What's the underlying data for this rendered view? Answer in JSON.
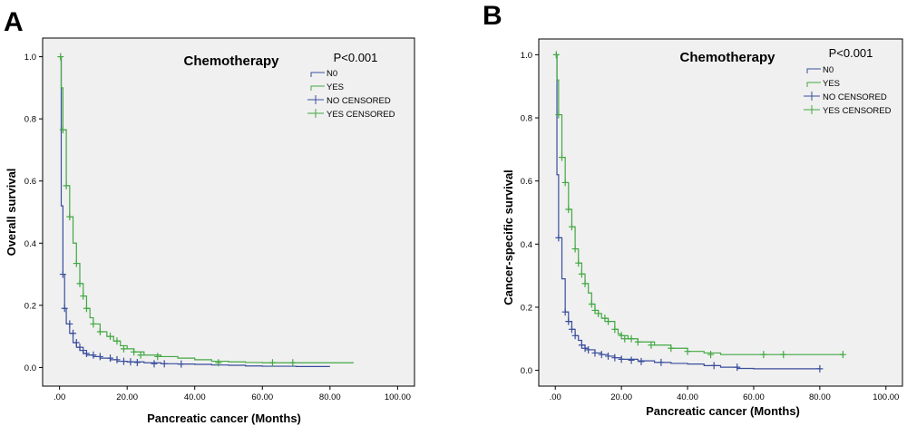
{
  "colors": {
    "no": "#3a4e9c",
    "yes": "#43a843",
    "plot_bg": "#f0f0f0",
    "axis": "#000000"
  },
  "chart_data": [
    {
      "type": "line",
      "panel": "A",
      "title": "Chemotherapy",
      "pvalue": "P<0.001",
      "xlabel": "Pancreatic cancer  (Months)",
      "ylabel": "Overall survival",
      "xlim": [
        -5,
        105
      ],
      "ylim": [
        -0.06,
        1.06
      ],
      "xticks": [
        0,
        20,
        40,
        60,
        80,
        100
      ],
      "xtick_labels": [
        ".00",
        "20.00",
        "40.00",
        "60.00",
        "80.00",
        "100.00"
      ],
      "yticks": [
        0,
        0.2,
        0.4,
        0.6,
        0.8,
        1.0
      ],
      "ytick_labels": [
        "0.0",
        "0.2",
        "0.4",
        "0.6",
        "0.8",
        "1.0"
      ],
      "legend": [
        "N0",
        "YES",
        "NO CENSORED",
        "YES CENSORED"
      ],
      "series": [
        {
          "name": "NO",
          "color_key": "no",
          "x": [
            0,
            0.5,
            1,
            1.5,
            2,
            3,
            4,
            5,
            6,
            7,
            8,
            10,
            12,
            15,
            17,
            20,
            25,
            30,
            35,
            40,
            45,
            50,
            55,
            60,
            70,
            80
          ],
          "y": [
            1.0,
            0.52,
            0.3,
            0.19,
            0.14,
            0.11,
            0.08,
            0.065,
            0.055,
            0.045,
            0.04,
            0.035,
            0.03,
            0.025,
            0.02,
            0.018,
            0.015,
            0.012,
            0.011,
            0.01,
            0.008,
            0.007,
            0.005,
            0.004,
            0.003,
            0.003
          ],
          "censored_x": [
            1,
            1.5,
            3,
            4,
            5,
            6,
            7,
            8,
            10,
            12,
            15,
            17,
            19,
            21,
            23,
            28,
            31,
            36
          ],
          "censored_y": [
            0.3,
            0.19,
            0.14,
            0.11,
            0.08,
            0.065,
            0.055,
            0.045,
            0.04,
            0.035,
            0.03,
            0.025,
            0.02,
            0.018,
            0.016,
            0.012,
            0.012,
            0.011
          ]
        },
        {
          "name": "YES",
          "color_key": "yes",
          "x": [
            0,
            0.5,
            1,
            2,
            3,
            4,
            5,
            6,
            7,
            8,
            9,
            10,
            12,
            14,
            16,
            18,
            20,
            22,
            25,
            30,
            35,
            40,
            45,
            50,
            55,
            60,
            70,
            80,
            87
          ],
          "y": [
            1.0,
            0.9,
            0.765,
            0.585,
            0.485,
            0.4,
            0.335,
            0.27,
            0.23,
            0.19,
            0.16,
            0.14,
            0.115,
            0.1,
            0.085,
            0.07,
            0.06,
            0.05,
            0.04,
            0.035,
            0.03,
            0.025,
            0.02,
            0.018,
            0.016,
            0.015,
            0.015,
            0.015,
            0.015
          ],
          "censored_x": [
            0.3,
            1,
            2,
            3,
            5,
            6,
            7,
            8,
            10,
            12,
            15,
            17,
            19,
            22,
            24,
            29,
            47,
            63,
            69
          ],
          "censored_y": [
            1.0,
            0.765,
            0.585,
            0.485,
            0.335,
            0.27,
            0.23,
            0.19,
            0.14,
            0.115,
            0.1,
            0.085,
            0.06,
            0.05,
            0.04,
            0.035,
            0.015,
            0.015,
            0.015
          ]
        }
      ]
    },
    {
      "type": "line",
      "panel": "B",
      "title": "Chemotherapy",
      "pvalue": "P<0.001",
      "xlabel": "Pancreatic cancer  (Months)",
      "ylabel": "Cancer-specific survival",
      "xlim": [
        -5,
        105
      ],
      "ylim": [
        -0.05,
        1.05
      ],
      "xticks": [
        0,
        20,
        40,
        60,
        80,
        100
      ],
      "xtick_labels": [
        ".00",
        "20.00",
        "40.00",
        "60.00",
        "80.00",
        "100.00"
      ],
      "yticks": [
        0,
        0.2,
        0.4,
        0.6,
        0.8,
        1.0
      ],
      "ytick_labels": [
        "0.0",
        "0.2",
        "0.4",
        "0.6",
        "0.8",
        "1.0"
      ],
      "legend": [
        "N0",
        "YES",
        "NO CENSORED",
        "YES CENSORED"
      ],
      "series": [
        {
          "name": "NO",
          "color_key": "no",
          "x": [
            0,
            0.5,
            1,
            2,
            3,
            4,
            5,
            6,
            7,
            8,
            9,
            10,
            12,
            14,
            16,
            18,
            20,
            25,
            30,
            35,
            40,
            45,
            50,
            55,
            60,
            80
          ],
          "y": [
            1.0,
            0.62,
            0.42,
            0.29,
            0.185,
            0.155,
            0.13,
            0.11,
            0.095,
            0.08,
            0.07,
            0.065,
            0.055,
            0.05,
            0.045,
            0.04,
            0.035,
            0.03,
            0.025,
            0.022,
            0.02,
            0.015,
            0.01,
            0.006,
            0.005,
            0.005
          ],
          "censored_x": [
            1,
            3,
            4,
            5,
            6,
            8,
            9,
            10,
            12,
            14,
            16,
            18,
            20,
            23,
            26,
            32,
            48,
            55,
            80
          ],
          "censored_y": [
            0.42,
            0.185,
            0.155,
            0.13,
            0.11,
            0.08,
            0.07,
            0.065,
            0.055,
            0.05,
            0.045,
            0.04,
            0.035,
            0.032,
            0.028,
            0.025,
            0.015,
            0.01,
            0.005
          ]
        },
        {
          "name": "YES",
          "color_key": "yes",
          "x": [
            0,
            0.5,
            1,
            2,
            3,
            4,
            5,
            6,
            7,
            8,
            9,
            10,
            11,
            12,
            13,
            14,
            16,
            18,
            19,
            20,
            22,
            25,
            30,
            35,
            40,
            45,
            50,
            60,
            70,
            80,
            87
          ],
          "y": [
            1.0,
            0.92,
            0.81,
            0.675,
            0.595,
            0.51,
            0.455,
            0.385,
            0.34,
            0.305,
            0.275,
            0.245,
            0.21,
            0.19,
            0.18,
            0.165,
            0.155,
            0.13,
            0.115,
            0.11,
            0.1,
            0.09,
            0.08,
            0.07,
            0.06,
            0.055,
            0.05,
            0.05,
            0.05,
            0.05,
            0.05
          ],
          "censored_x": [
            0.3,
            1,
            2,
            3,
            4,
            5,
            6,
            7,
            8,
            9,
            11,
            12,
            13,
            15,
            16,
            18,
            20,
            21,
            23,
            25,
            29,
            35,
            40,
            47,
            63,
            69,
            87
          ],
          "censored_y": [
            1.0,
            0.81,
            0.675,
            0.595,
            0.51,
            0.455,
            0.385,
            0.34,
            0.305,
            0.275,
            0.21,
            0.19,
            0.18,
            0.165,
            0.155,
            0.13,
            0.11,
            0.1,
            0.1,
            0.09,
            0.08,
            0.07,
            0.06,
            0.05,
            0.05,
            0.05,
            0.05
          ]
        }
      ]
    }
  ]
}
